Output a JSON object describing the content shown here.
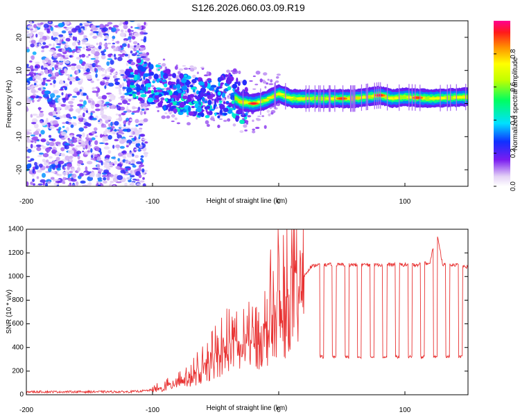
{
  "title": "S126.2026.060.03.09.R19",
  "chart_data": [
    {
      "type": "heatmap",
      "description_of_content": "Spectrogram of frequency versus height of straight line, colored by normalized spectral amplitude",
      "xlabel": "Height of straight line (km)",
      "ylabel": "Frequency (Hz)",
      "xlim": [
        -200,
        150
      ],
      "ylim": [
        -25,
        25
      ],
      "xticks": [
        -200,
        -100,
        0,
        100
      ],
      "yticks": [
        20,
        10,
        0,
        -10,
        -20
      ],
      "xtick_labels": [
        "-200",
        "-100",
        "0",
        "100"
      ],
      "ytick_labels": [
        "20",
        "10",
        "0",
        "-10",
        "-20"
      ],
      "colorbar": {
        "label": "Normalized spectral amplitude",
        "range": [
          0.0,
          1.0
        ],
        "ticks": [
          0.0,
          0.2,
          0.4,
          0.6,
          0.8
        ],
        "tick_labels": [
          "0.0",
          "0.2",
          "0.4",
          "0.6",
          "0.8"
        ]
      },
      "ridge": {
        "x": [
          -120,
          -110,
          -100,
          -90,
          -80,
          -70,
          -60,
          -50,
          -40,
          -30,
          -20,
          -10,
          0,
          10,
          20,
          40,
          60,
          80,
          90,
          100,
          120,
          150
        ],
        "y": [
          8,
          7,
          6,
          4.5,
          3,
          2.5,
          2,
          1.5,
          3,
          0.5,
          0,
          1,
          3,
          1.5,
          1.5,
          1.5,
          1.5,
          2.5,
          1.5,
          2,
          1.5,
          2
        ],
        "peak_x": [
          -20,
          50,
          80,
          110
        ],
        "peak_amplitude": [
          0.95,
          0.9,
          0.92,
          0.9
        ]
      }
    },
    {
      "type": "line",
      "xlabel": "Height of straight line (km)",
      "ylabel": "SNR (10 * v/v)",
      "xlim": [
        -200,
        150
      ],
      "ylim": [
        0,
        1400
      ],
      "xticks": [
        -200,
        -100,
        0,
        100
      ],
      "yticks": [
        0,
        200,
        400,
        600,
        800,
        1000,
        1200,
        1400
      ],
      "xtick_labels": [
        "-200",
        "-100",
        "0",
        "100"
      ],
      "ytick_labels": [
        "0",
        "200",
        "400",
        "600",
        "800",
        "1000",
        "1200",
        "1400"
      ],
      "color": "#e83030",
      "series": [
        {
          "name": "SNR",
          "x": [
            -200,
            -160,
            -120,
            -110,
            -100,
            -90,
            -80,
            -70,
            -60,
            -50,
            -40,
            -35,
            -30,
            -25,
            -20,
            -10,
            0,
            5,
            10,
            15,
            20,
            25,
            30,
            40,
            50,
            60,
            70,
            80,
            90,
            100,
            110,
            120,
            125,
            130,
            140,
            150
          ],
          "y": [
            25,
            25,
            25,
            30,
            40,
            60,
            120,
            150,
            200,
            300,
            400,
            500,
            350,
            500,
            450,
            500,
            750,
            650,
            900,
            850,
            1000,
            1080,
            1100,
            1100,
            1100,
            1100,
            1100,
            1100,
            1100,
            1100,
            1100,
            1120,
            1380,
            1100,
            1100,
            1080
          ]
        }
      ],
      "dropouts": {
        "x": [
          34,
          44,
          54,
          64,
          74,
          84,
          94,
          104,
          114,
          124,
          134,
          144
        ],
        "level": 320
      }
    }
  ]
}
